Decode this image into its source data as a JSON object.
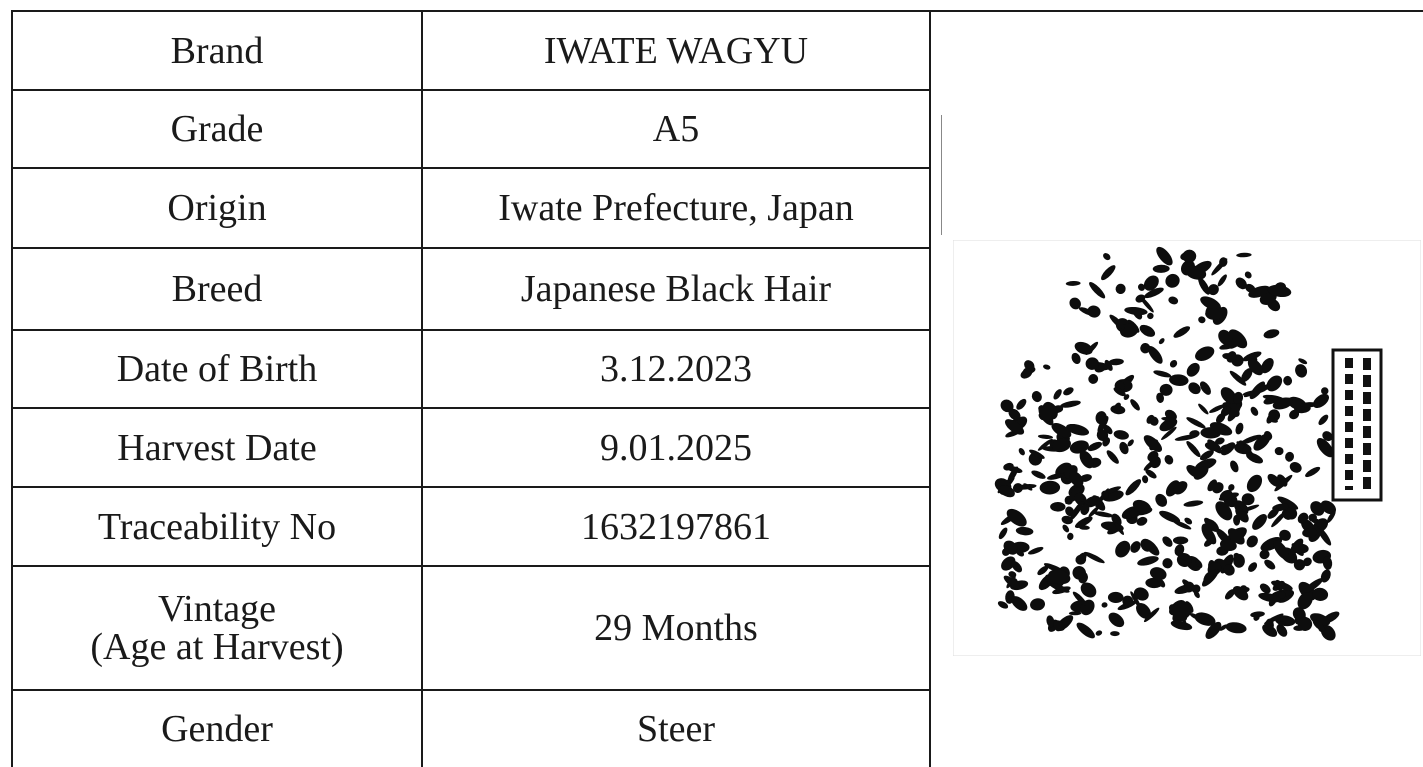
{
  "table": {
    "rows": [
      {
        "label": "Brand",
        "value": "IWATE WAGYU"
      },
      {
        "label": "Grade",
        "value": "A5"
      },
      {
        "label": "Origin",
        "value": "Iwate Prefecture, Japan"
      },
      {
        "label": "Breed",
        "value": "Japanese Black Hair"
      },
      {
        "label": "Date of Birth",
        "value": "3.12.2023"
      },
      {
        "label": "Harvest Date",
        "value": "9.01.2025"
      },
      {
        "label": "Traceability No",
        "value": "1632197861"
      },
      {
        "label": "Vintage\n(Age at Harvest)",
        "value": "29 Months"
      },
      {
        "label": "Gender",
        "value": "Steer"
      }
    ]
  }
}
